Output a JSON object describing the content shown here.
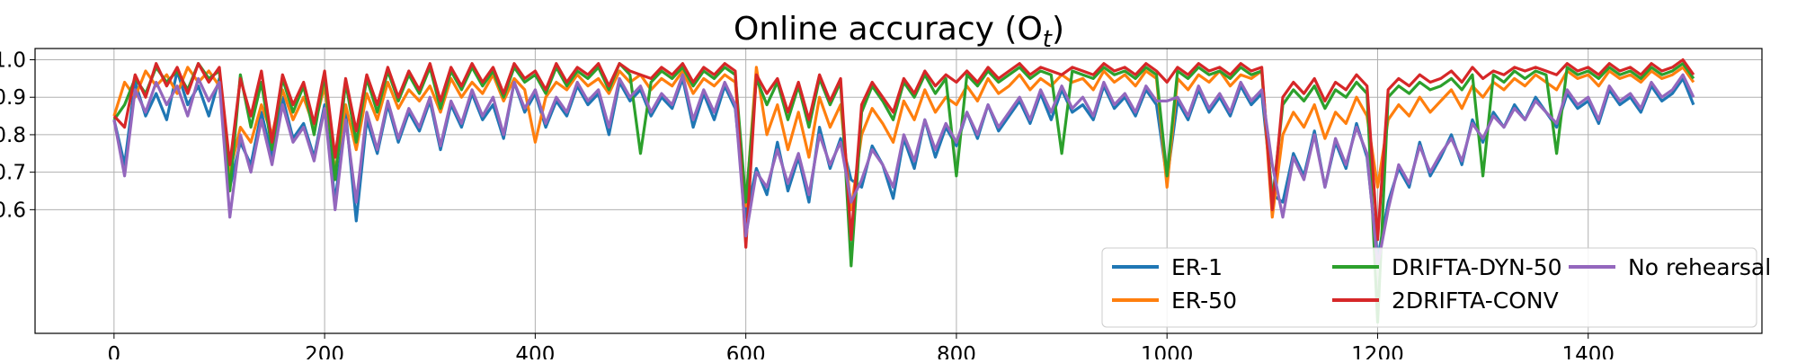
{
  "chart_data": {
    "type": "line",
    "title": "Online accuracy (O",
    "title_subscript": "t",
    "title_suffix": ")",
    "xlabel": "",
    "ylabel": "",
    "xlim": [
      -75,
      1565
    ],
    "ylim": [
      0.27,
      1.03
    ],
    "x_ticks": [
      0,
      200,
      400,
      600,
      800,
      1000,
      1200,
      1400
    ],
    "x_tick_labels": [
      "0",
      "200",
      "400",
      "600",
      "800",
      "1000",
      "1200",
      "1400"
    ],
    "y_ticks": [
      0.6,
      0.7,
      0.8,
      0.9,
      1.0
    ],
    "y_tick_labels": [
      "0.6",
      "0.7",
      "0.8",
      "0.9",
      "1.0"
    ],
    "grid": true,
    "legend_position": "lower-right",
    "legend_columns": 3,
    "x": [
      0,
      10,
      20,
      30,
      40,
      50,
      60,
      70,
      80,
      90,
      100,
      110,
      120,
      130,
      140,
      150,
      160,
      170,
      180,
      190,
      200,
      210,
      220,
      230,
      240,
      250,
      260,
      270,
      280,
      290,
      300,
      310,
      320,
      330,
      340,
      350,
      360,
      370,
      380,
      390,
      400,
      410,
      420,
      430,
      440,
      450,
      460,
      470,
      480,
      490,
      500,
      510,
      520,
      530,
      540,
      550,
      560,
      570,
      580,
      590,
      600,
      610,
      620,
      630,
      640,
      650,
      660,
      670,
      680,
      690,
      700,
      710,
      720,
      730,
      740,
      750,
      760,
      770,
      780,
      790,
      800,
      810,
      820,
      830,
      840,
      850,
      860,
      870,
      880,
      890,
      900,
      910,
      920,
      930,
      940,
      950,
      960,
      970,
      980,
      990,
      1000,
      1010,
      1020,
      1030,
      1040,
      1050,
      1060,
      1070,
      1080,
      1090,
      1100,
      1110,
      1120,
      1130,
      1140,
      1150,
      1160,
      1170,
      1180,
      1190,
      1200,
      1210,
      1220,
      1230,
      1240,
      1250,
      1260,
      1270,
      1280,
      1290,
      1300,
      1310,
      1320,
      1330,
      1340,
      1350,
      1360,
      1370,
      1380,
      1390,
      1400,
      1410,
      1420,
      1430,
      1440,
      1450,
      1460,
      1470,
      1480,
      1490,
      1500
    ],
    "series": [
      {
        "name": "ER-1",
        "color": "#1f77b4",
        "values": [
          0.84,
          0.72,
          0.94,
          0.85,
          0.91,
          0.84,
          0.97,
          0.88,
          0.93,
          0.85,
          0.95,
          0.66,
          0.78,
          0.72,
          0.86,
          0.74,
          0.9,
          0.79,
          0.83,
          0.74,
          0.88,
          0.62,
          0.86,
          0.57,
          0.84,
          0.75,
          0.88,
          0.78,
          0.86,
          0.81,
          0.89,
          0.76,
          0.88,
          0.82,
          0.91,
          0.84,
          0.88,
          0.79,
          0.94,
          0.86,
          0.91,
          0.82,
          0.89,
          0.85,
          0.93,
          0.88,
          0.91,
          0.8,
          0.94,
          0.89,
          0.92,
          0.85,
          0.9,
          0.87,
          0.95,
          0.82,
          0.91,
          0.84,
          0.93,
          0.87,
          0.58,
          0.71,
          0.64,
          0.78,
          0.65,
          0.74,
          0.62,
          0.82,
          0.71,
          0.79,
          0.68,
          0.66,
          0.77,
          0.72,
          0.63,
          0.79,
          0.71,
          0.84,
          0.74,
          0.82,
          0.77,
          0.86,
          0.79,
          0.88,
          0.81,
          0.85,
          0.89,
          0.83,
          0.91,
          0.84,
          0.92,
          0.86,
          0.88,
          0.84,
          0.93,
          0.87,
          0.9,
          0.85,
          0.92,
          0.88,
          0.68,
          0.89,
          0.84,
          0.92,
          0.86,
          0.9,
          0.85,
          0.93,
          0.88,
          0.91,
          0.64,
          0.62,
          0.75,
          0.69,
          0.81,
          0.66,
          0.78,
          0.71,
          0.83,
          0.74,
          0.47,
          0.62,
          0.71,
          0.66,
          0.78,
          0.69,
          0.74,
          0.8,
          0.72,
          0.84,
          0.78,
          0.86,
          0.82,
          0.88,
          0.84,
          0.9,
          0.86,
          0.82,
          0.91,
          0.87,
          0.89,
          0.83,
          0.92,
          0.88,
          0.9,
          0.86,
          0.93,
          0.89,
          0.91,
          0.95,
          0.88
        ]
      },
      {
        "name": "ER-50",
        "color": "#ff7f0e",
        "values": [
          0.85,
          0.94,
          0.9,
          0.97,
          0.93,
          0.96,
          0.91,
          0.98,
          0.94,
          0.97,
          0.93,
          0.7,
          0.82,
          0.78,
          0.88,
          0.8,
          0.92,
          0.84,
          0.9,
          0.82,
          0.93,
          0.7,
          0.88,
          0.76,
          0.91,
          0.84,
          0.94,
          0.87,
          0.92,
          0.89,
          0.93,
          0.86,
          0.95,
          0.9,
          0.94,
          0.91,
          0.96,
          0.89,
          0.95,
          0.92,
          0.78,
          0.9,
          0.94,
          0.92,
          0.96,
          0.93,
          0.95,
          0.91,
          0.97,
          0.94,
          0.96,
          0.92,
          0.95,
          0.93,
          0.97,
          0.91,
          0.95,
          0.93,
          0.96,
          0.94,
          0.61,
          0.98,
          0.8,
          0.88,
          0.76,
          0.86,
          0.74,
          0.9,
          0.82,
          0.88,
          0.6,
          0.8,
          0.87,
          0.83,
          0.78,
          0.89,
          0.84,
          0.92,
          0.86,
          0.9,
          0.88,
          0.93,
          0.89,
          0.95,
          0.91,
          0.93,
          0.96,
          0.92,
          0.95,
          0.93,
          0.96,
          0.94,
          0.95,
          0.92,
          0.97,
          0.94,
          0.96,
          0.93,
          0.97,
          0.95,
          0.66,
          0.95,
          0.92,
          0.96,
          0.94,
          0.97,
          0.93,
          0.96,
          0.95,
          0.97,
          0.58,
          0.8,
          0.86,
          0.82,
          0.88,
          0.79,
          0.86,
          0.83,
          0.9,
          0.85,
          0.66,
          0.84,
          0.88,
          0.85,
          0.9,
          0.86,
          0.89,
          0.92,
          0.87,
          0.93,
          0.9,
          0.94,
          0.92,
          0.95,
          0.93,
          0.96,
          0.94,
          0.92,
          0.97,
          0.95,
          0.96,
          0.93,
          0.97,
          0.95,
          0.96,
          0.94,
          0.97,
          0.95,
          0.96,
          0.98,
          0.94
        ]
      },
      {
        "name": "DRIFTA-DYN-50",
        "color": "#2ca02c",
        "values": [
          0.84,
          0.88,
          0.95,
          0.91,
          0.98,
          0.94,
          0.97,
          0.92,
          0.99,
          0.95,
          0.97,
          0.65,
          0.96,
          0.82,
          0.94,
          0.76,
          0.95,
          0.86,
          0.93,
          0.8,
          0.96,
          0.68,
          0.94,
          0.78,
          0.95,
          0.86,
          0.97,
          0.89,
          0.96,
          0.91,
          0.98,
          0.87,
          0.97,
          0.92,
          0.98,
          0.93,
          0.97,
          0.9,
          0.98,
          0.94,
          0.96,
          0.91,
          0.98,
          0.93,
          0.97,
          0.95,
          0.98,
          0.92,
          0.99,
          0.96,
          0.75,
          0.94,
          0.97,
          0.95,
          0.98,
          0.93,
          0.97,
          0.95,
          0.98,
          0.96,
          0.62,
          0.95,
          0.88,
          0.94,
          0.84,
          0.93,
          0.82,
          0.95,
          0.88,
          0.94,
          0.45,
          0.86,
          0.93,
          0.89,
          0.84,
          0.94,
          0.9,
          0.96,
          0.91,
          0.95,
          0.69,
          0.96,
          0.93,
          0.97,
          0.94,
          0.96,
          0.98,
          0.95,
          0.97,
          0.96,
          0.75,
          0.97,
          0.96,
          0.95,
          0.98,
          0.96,
          0.97,
          0.95,
          0.98,
          0.96,
          0.69,
          0.97,
          0.95,
          0.98,
          0.96,
          0.97,
          0.95,
          0.98,
          0.96,
          0.97,
          0.62,
          0.88,
          0.92,
          0.89,
          0.93,
          0.87,
          0.92,
          0.9,
          0.94,
          0.91,
          0.3,
          0.9,
          0.93,
          0.91,
          0.94,
          0.92,
          0.93,
          0.95,
          0.92,
          0.96,
          0.69,
          0.96,
          0.94,
          0.97,
          0.95,
          0.97,
          0.96,
          0.75,
          0.98,
          0.96,
          0.97,
          0.95,
          0.98,
          0.96,
          0.97,
          0.95,
          0.98,
          0.96,
          0.97,
          0.99,
          0.95
        ]
      },
      {
        "name": "2DRIFTA-CONV",
        "color": "#d62728",
        "values": [
          0.85,
          0.82,
          0.96,
          0.9,
          0.99,
          0.93,
          0.98,
          0.91,
          0.99,
          0.94,
          0.98,
          0.72,
          0.95,
          0.85,
          0.97,
          0.78,
          0.96,
          0.88,
          0.94,
          0.83,
          0.97,
          0.74,
          0.95,
          0.81,
          0.96,
          0.88,
          0.98,
          0.9,
          0.97,
          0.92,
          0.99,
          0.89,
          0.98,
          0.93,
          0.99,
          0.94,
          0.98,
          0.91,
          0.99,
          0.95,
          0.97,
          0.92,
          0.99,
          0.94,
          0.98,
          0.96,
          0.99,
          0.93,
          0.99,
          0.97,
          0.96,
          0.95,
          0.98,
          0.96,
          0.99,
          0.94,
          0.98,
          0.96,
          0.99,
          0.97,
          0.5,
          0.96,
          0.91,
          0.95,
          0.86,
          0.94,
          0.84,
          0.96,
          0.89,
          0.95,
          0.52,
          0.88,
          0.94,
          0.9,
          0.86,
          0.95,
          0.91,
          0.97,
          0.93,
          0.96,
          0.94,
          0.97,
          0.94,
          0.98,
          0.95,
          0.97,
          0.99,
          0.96,
          0.98,
          0.97,
          0.96,
          0.98,
          0.97,
          0.96,
          0.99,
          0.97,
          0.98,
          0.96,
          0.99,
          0.97,
          0.94,
          0.98,
          0.96,
          0.99,
          0.97,
          0.98,
          0.96,
          0.99,
          0.97,
          0.98,
          0.6,
          0.9,
          0.94,
          0.91,
          0.95,
          0.89,
          0.94,
          0.92,
          0.96,
          0.93,
          0.52,
          0.92,
          0.95,
          0.93,
          0.96,
          0.94,
          0.95,
          0.97,
          0.94,
          0.98,
          0.95,
          0.97,
          0.96,
          0.98,
          0.97,
          0.98,
          0.97,
          0.96,
          0.99,
          0.97,
          0.98,
          0.96,
          0.99,
          0.97,
          0.98,
          0.96,
          0.99,
          0.97,
          0.98,
          1.0,
          0.96
        ]
      },
      {
        "name": "No rehearsal",
        "color": "#9467bd",
        "values": [
          0.84,
          0.69,
          0.92,
          0.86,
          0.94,
          0.88,
          0.93,
          0.85,
          0.95,
          0.89,
          0.94,
          0.58,
          0.8,
          0.7,
          0.84,
          0.72,
          0.88,
          0.78,
          0.82,
          0.73,
          0.87,
          0.6,
          0.84,
          0.62,
          0.86,
          0.76,
          0.89,
          0.79,
          0.87,
          0.82,
          0.9,
          0.77,
          0.89,
          0.83,
          0.92,
          0.85,
          0.9,
          0.8,
          0.94,
          0.87,
          0.92,
          0.83,
          0.9,
          0.86,
          0.94,
          0.89,
          0.92,
          0.82,
          0.95,
          0.9,
          0.93,
          0.86,
          0.91,
          0.88,
          0.96,
          0.84,
          0.92,
          0.86,
          0.94,
          0.88,
          0.53,
          0.7,
          0.66,
          0.76,
          0.67,
          0.75,
          0.64,
          0.8,
          0.72,
          0.78,
          0.62,
          0.68,
          0.76,
          0.72,
          0.66,
          0.8,
          0.73,
          0.84,
          0.76,
          0.83,
          0.78,
          0.86,
          0.8,
          0.88,
          0.82,
          0.86,
          0.9,
          0.84,
          0.92,
          0.86,
          0.93,
          0.87,
          0.9,
          0.85,
          0.94,
          0.88,
          0.91,
          0.86,
          0.93,
          0.89,
          0.89,
          0.9,
          0.85,
          0.93,
          0.87,
          0.91,
          0.86,
          0.94,
          0.89,
          0.92,
          0.72,
          0.58,
          0.74,
          0.68,
          0.8,
          0.66,
          0.79,
          0.72,
          0.82,
          0.75,
          0.45,
          0.6,
          0.72,
          0.67,
          0.77,
          0.7,
          0.75,
          0.79,
          0.73,
          0.83,
          0.79,
          0.85,
          0.82,
          0.87,
          0.84,
          0.89,
          0.86,
          0.83,
          0.92,
          0.88,
          0.9,
          0.84,
          0.93,
          0.89,
          0.91,
          0.87,
          0.94,
          0.9,
          0.92,
          0.96,
          0.9
        ]
      }
    ]
  }
}
